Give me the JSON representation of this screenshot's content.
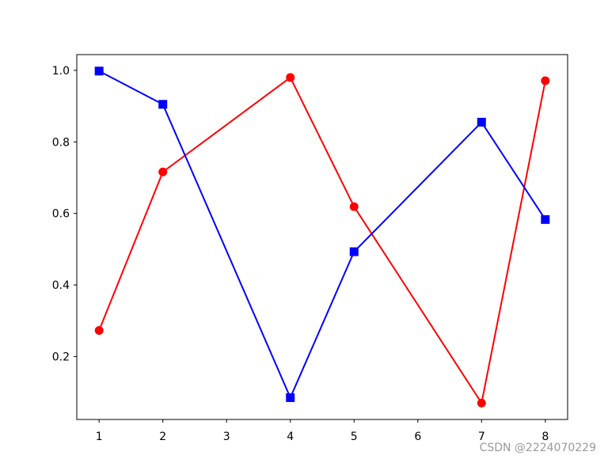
{
  "chart_data": {
    "type": "line",
    "x": [
      1,
      2,
      4,
      5,
      7,
      8
    ],
    "series": [
      {
        "color": "#ff0000",
        "marker": "circle",
        "values": [
          0.273,
          0.716,
          0.98,
          0.619,
          0.07,
          0.971
        ]
      },
      {
        "color": "#0000ff",
        "marker": "square",
        "values": [
          0.998,
          0.905,
          0.085,
          0.493,
          0.855,
          0.583
        ]
      }
    ],
    "xlim": [
      0.65,
      8.35
    ],
    "xticks": [
      1,
      2,
      3,
      4,
      5,
      6,
      7,
      8
    ],
    "ylim": [
      0.024,
      1.044
    ],
    "yticks": [
      0.2,
      0.4,
      0.6,
      0.8,
      {
        "value": 1,
        "label": "1.0"
      }
    ],
    "grid": false
  },
  "watermark": "CSDN @2224070229"
}
